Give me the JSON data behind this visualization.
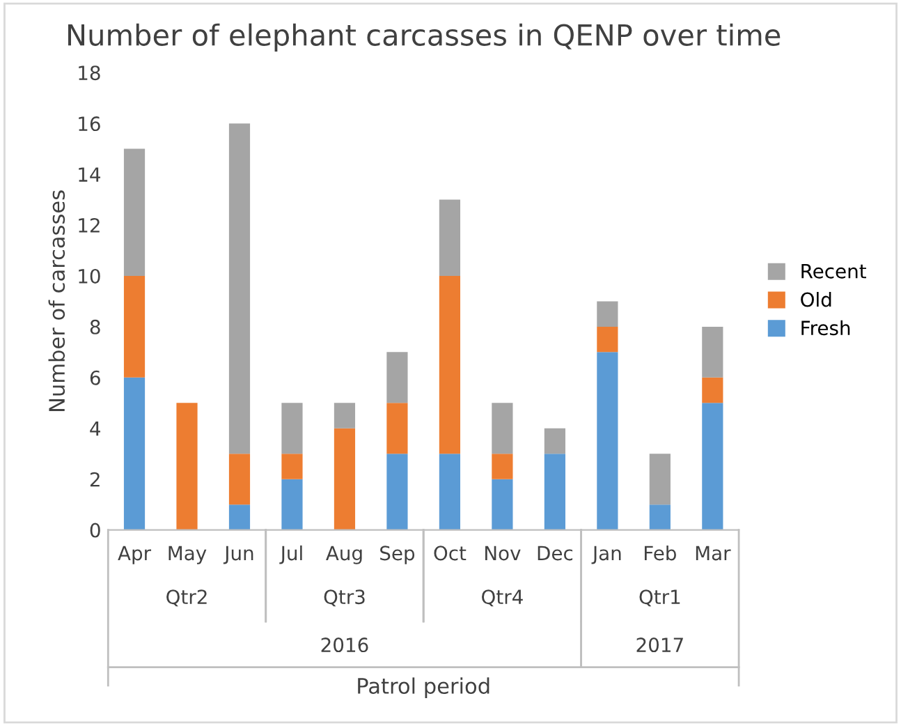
{
  "chart_data": {
    "type": "bar",
    "title": "Number of elephant carcasses in QENP over time",
    "ylabel": "Number of carcasses",
    "categories": [
      "Apr",
      "May",
      "Jun",
      "Jul",
      "Aug",
      "Sep",
      "Oct",
      "Nov",
      "Dec",
      "Jan",
      "Feb",
      "Mar"
    ],
    "stacked": true,
    "series": [
      {
        "name": "Fresh",
        "color": "#5b9bd5",
        "values": [
          6,
          0,
          1,
          2,
          0,
          3,
          3,
          2,
          3,
          7,
          1,
          5
        ]
      },
      {
        "name": "Old",
        "color": "#ed7d31",
        "values": [
          4,
          5,
          2,
          1,
          4,
          2,
          7,
          1,
          0,
          1,
          0,
          1
        ]
      },
      {
        "name": "Recent",
        "color": "#a5a5a5",
        "values": [
          5,
          0,
          13,
          2,
          1,
          2,
          3,
          2,
          1,
          1,
          2,
          2
        ]
      }
    ],
    "annotations": [
      "Qtr2",
      "Qtr3",
      "Qtr4",
      "Qtr1",
      "2016",
      "2017",
      "Patrol period"
    ],
    "ylim": [
      0,
      18
    ],
    "yticks": [
      0,
      2,
      4,
      6,
      8,
      10,
      12,
      14,
      16,
      18
    ],
    "legend": "right"
  }
}
